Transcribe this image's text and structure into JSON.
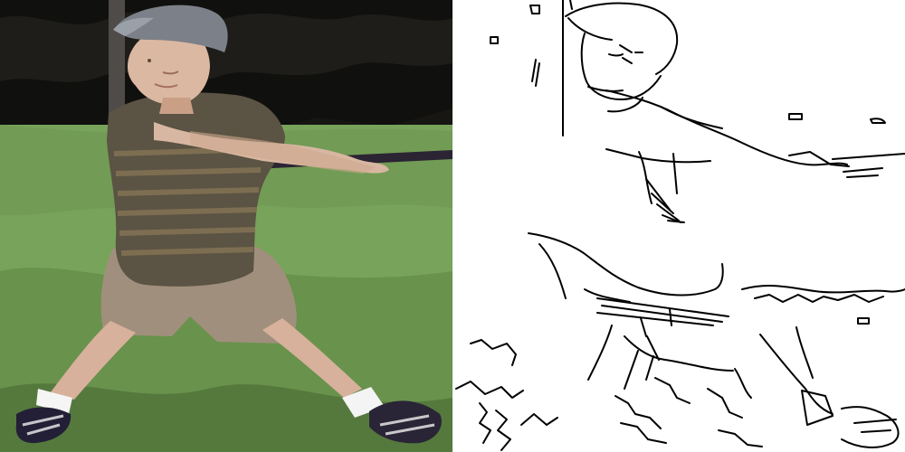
{
  "image": {
    "left_panel": {
      "kind": "photo",
      "subject": "child batting"
    },
    "right_panel": {
      "kind": "edge-map"
    }
  },
  "colors": {
    "grass_light": "#7fa35f",
    "grass_dark": "#4f6f37",
    "tree_dark": "#1a1714",
    "shirt": "#5a5242",
    "shirt_stripe": "#8d7b58",
    "shorts": "#a18f7d",
    "cap": "#7d8088",
    "skin": "#d9b7a1",
    "bat": "#2b2433",
    "edge_line": "#000000",
    "edge_bg": "#ffffff"
  }
}
